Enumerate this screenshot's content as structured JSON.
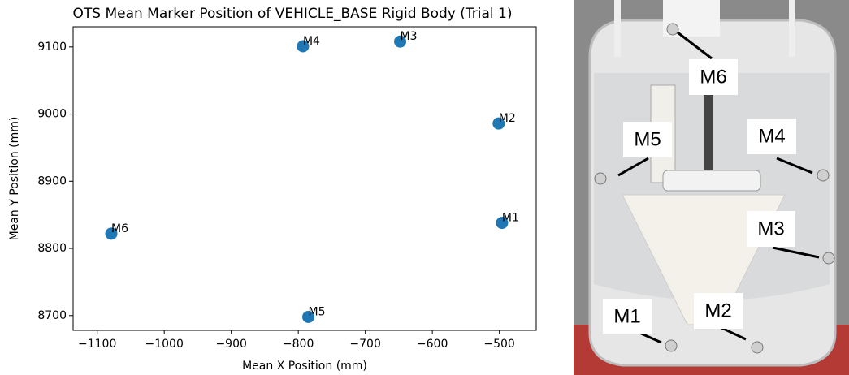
{
  "chart_data": {
    "type": "scatter",
    "title": "OTS Mean Marker Position of VEHICLE_BASE Rigid Body (Trial 1)",
    "x_label": "Mean X Position (mm)",
    "y_label": "Mean Y Position (mm)",
    "series": [
      {
        "color": "#1f77b4",
        "labels": [
          "M1",
          "M2",
          "M3",
          "M4",
          "M5",
          "M6"
        ],
        "x": [
          -496,
          -501,
          -648,
          -793,
          -785,
          -1079
        ],
        "values": [
          8838,
          8986,
          9108,
          9101,
          8698,
          8822
        ]
      }
    ],
    "xlim": [
      -1136,
      -445
    ],
    "ylim": [
      8678,
      9130
    ],
    "xticks": [
      {
        "value": -1100,
        "label": "−1100"
      },
      {
        "value": -1000,
        "label": "−1000"
      },
      {
        "value": -900,
        "label": "−900"
      },
      {
        "value": -800,
        "label": "−800"
      },
      {
        "value": -700,
        "label": "−700"
      },
      {
        "value": -600,
        "label": "−600"
      },
      {
        "value": -500,
        "label": "−500"
      }
    ],
    "yticks": [
      8700,
      8800,
      8900,
      9000,
      9100
    ],
    "grid": false
  },
  "photo": {
    "labels": [
      "M6",
      "M5",
      "M4",
      "M3",
      "M1",
      "M2"
    ]
  }
}
